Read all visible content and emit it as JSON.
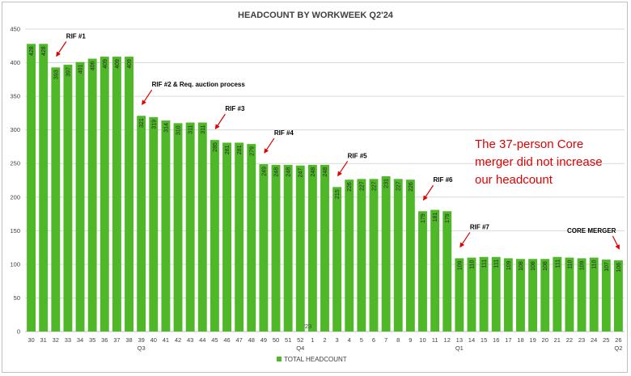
{
  "chart_data": {
    "type": "bar",
    "title": "HEADCOUNT BY WORKWEEK Q2'24",
    "categories": [
      "30",
      "31",
      "32",
      "33",
      "34",
      "35",
      "36",
      "37",
      "38",
      "39",
      "40",
      "41",
      "42",
      "43",
      "44",
      "45",
      "46",
      "47",
      "48",
      "49",
      "50",
      "51",
      "52",
      "1",
      "2",
      "3",
      "4",
      "5",
      "6",
      "7",
      "8",
      "9",
      "10",
      "11",
      "12",
      "13",
      "14",
      "15",
      "16",
      "17",
      "18",
      "19",
      "20",
      "21",
      "22",
      "23",
      "24",
      "25",
      "26"
    ],
    "quarter_labels": [
      {
        "category_index": 9,
        "label": "Q3"
      },
      {
        "category_index": 22,
        "label": "Q4"
      },
      {
        "category_index": 35,
        "label": "Q1"
      },
      {
        "category_index": 48,
        "label": "Q2"
      }
    ],
    "series": [
      {
        "name": "TOTAL HEADCOUNT",
        "color": "#4fb828",
        "values": [
          428,
          428,
          393,
          397,
          401,
          406,
          409,
          409,
          409,
          321,
          319,
          314,
          310,
          311,
          311,
          285,
          281,
          281,
          279,
          249,
          248,
          248,
          247,
          248,
          248,
          215,
          226,
          227,
          227,
          231,
          227,
          226,
          179,
          181,
          179,
          109,
          110,
          111,
          111,
          109,
          108,
          108,
          108,
          111,
          110,
          109,
          110,
          107,
          106
        ]
      }
    ],
    "ylim": [
      0,
      450
    ],
    "yticks": [
      0,
      50,
      100,
      150,
      200,
      250,
      300,
      350,
      400,
      450
    ],
    "grid": true,
    "legend": "bottom",
    "year_marker": {
      "category_index": 23,
      "label": "'23"
    },
    "annotations": [
      {
        "text": "RIF #1",
        "category_index": 2
      },
      {
        "text": "RIF #2 & Req. auction process",
        "category_index": 9
      },
      {
        "text": "RIF #3",
        "category_index": 15
      },
      {
        "text": "RIF #4",
        "category_index": 19
      },
      {
        "text": "RIF #5",
        "category_index": 25
      },
      {
        "text": "RIF #6",
        "category_index": 32
      },
      {
        "text": "RIF #7",
        "category_index": 35
      },
      {
        "text": "CORE MERGER",
        "category_index": 48
      }
    ],
    "note": [
      "The 37-person Core",
      "merger did not increase",
      "our headcount"
    ],
    "arrow_color": "#e00000"
  }
}
